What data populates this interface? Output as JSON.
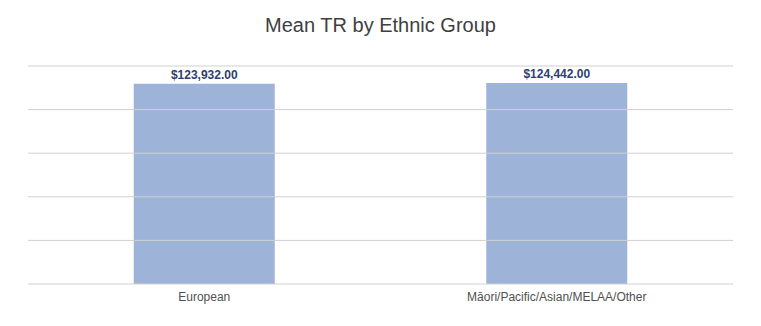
{
  "chart_data": {
    "type": "bar",
    "title": "Mean TR by Ethnic Group",
    "categories": [
      "European",
      "Māori/Pacific/Asian/MELAA/Other"
    ],
    "values": [
      123932.0,
      124442.0
    ],
    "value_labels": [
      "$123,932.00",
      "$124,442.00"
    ],
    "color": "#9db4d8",
    "ylim": [
      0,
      135000
    ],
    "yticks": [
      0,
      27000,
      54000,
      81000,
      108000,
      135000
    ],
    "grid": true,
    "data_labels": true,
    "tick_labels": "x"
  }
}
